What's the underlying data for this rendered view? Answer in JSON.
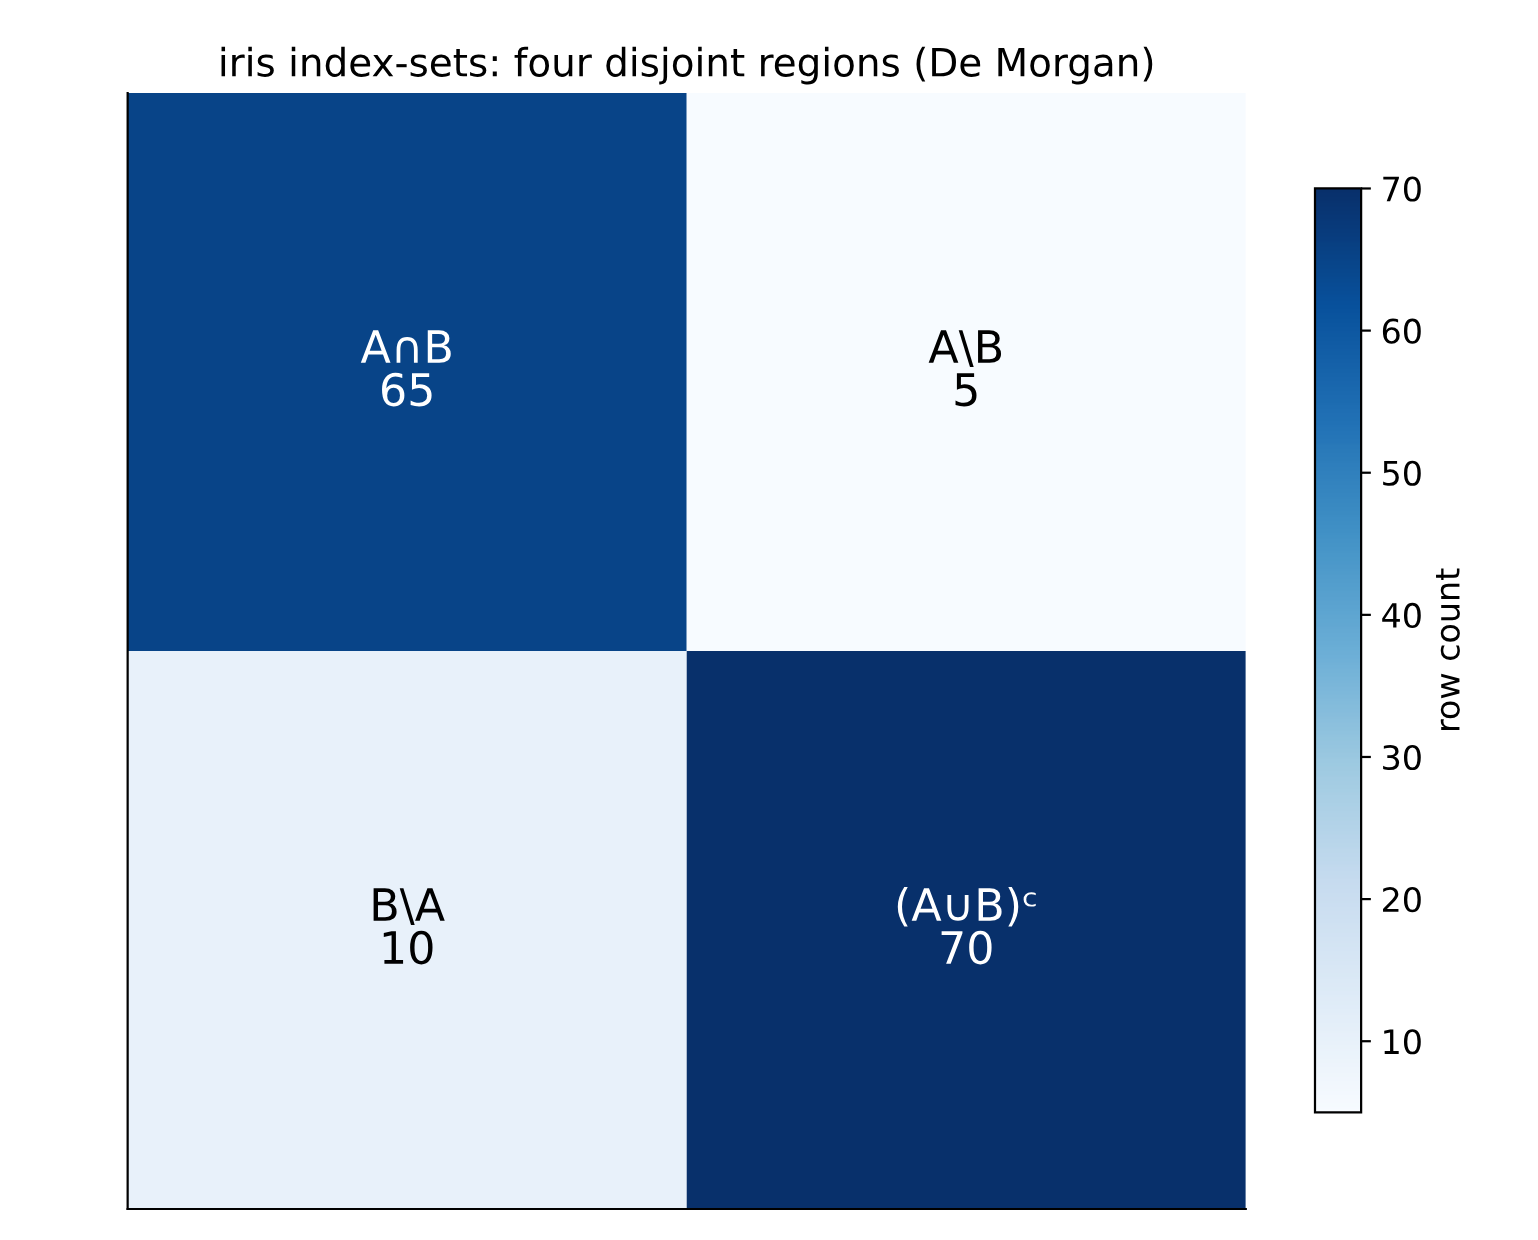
{
  "chart_data": {
    "type": "heatmap",
    "title": "iris index-sets: four disjoint regions (De Morgan)",
    "categories": [
      null,
      null
    ],
    "y_categories": [
      null,
      null
    ],
    "cells": [
      [
        65,
        5
      ],
      [
        10,
        70
      ]
    ],
    "cell_labels": [
      [
        "A∩B\n65",
        "A\\B\n5"
      ],
      [
        "B\\A\n10",
        "(A∪B)ᶜ\n70"
      ]
    ],
    "clabel": "row count",
    "clim": [
      5,
      70
    ],
    "cticks": [
      10,
      20,
      30,
      40,
      50,
      60,
      70
    ]
  }
}
